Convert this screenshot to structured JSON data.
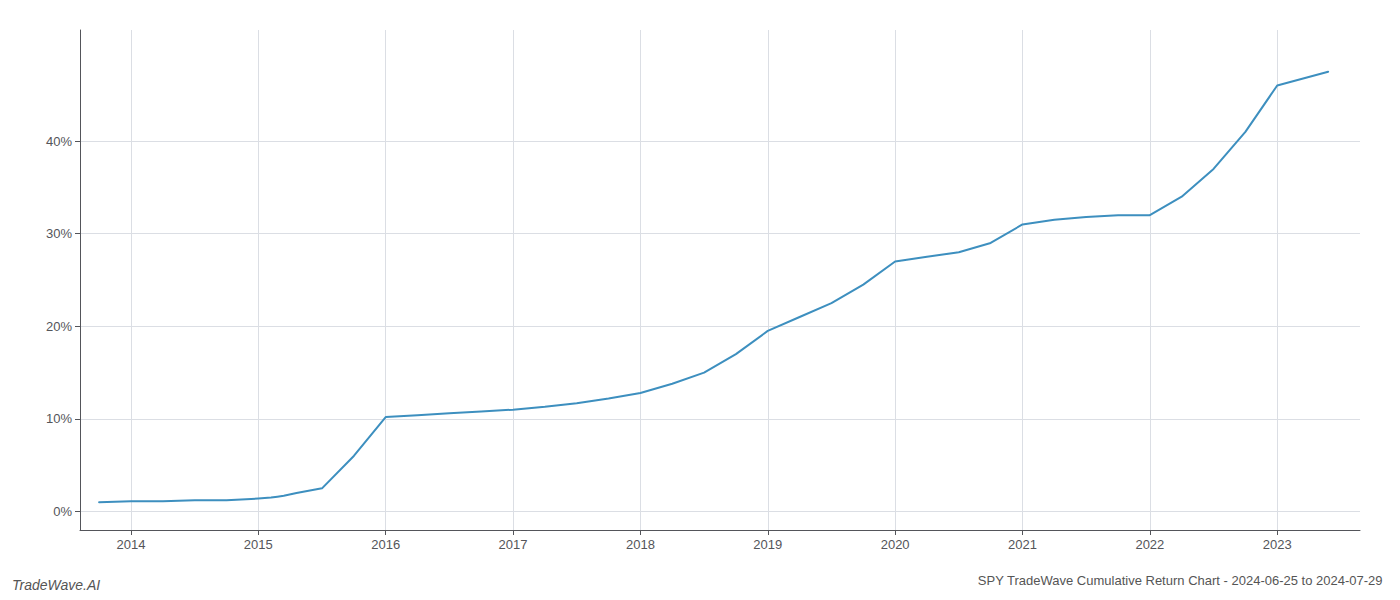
{
  "chart_data": {
    "type": "line",
    "title": "SPY TradeWave Cumulative Return Chart - 2024-06-25 to 2024-07-29",
    "annotations": [
      "TradeWave.AI"
    ],
    "color": "#3d8fbf",
    "x": [
      2013.75,
      2014.0,
      2014.25,
      2014.5,
      2014.75,
      2015.0,
      2015.1,
      2015.15,
      2015.2,
      2015.3,
      2015.5,
      2015.75,
      2016.0,
      2016.25,
      2016.5,
      2016.75,
      2017.0,
      2017.25,
      2017.5,
      2017.75,
      2018.0,
      2018.25,
      2018.5,
      2018.75,
      2019.0,
      2019.25,
      2019.5,
      2019.75,
      2020.0,
      2020.25,
      2020.5,
      2020.75,
      2021.0,
      2021.25,
      2021.5,
      2021.75,
      2022.0,
      2022.25,
      2022.5,
      2022.75,
      2023.0,
      2023.4
    ],
    "values": [
      1.0,
      1.1,
      1.1,
      1.2,
      1.2,
      1.4,
      1.5,
      1.6,
      1.7,
      2.0,
      2.5,
      6.0,
      10.2,
      10.4,
      10.6,
      10.8,
      11.0,
      11.3,
      11.7,
      12.2,
      12.8,
      13.8,
      15.0,
      17.0,
      19.5,
      21.0,
      22.5,
      24.5,
      27.0,
      27.5,
      28.0,
      29.0,
      31.0,
      31.5,
      31.8,
      32.0,
      32.0,
      34.0,
      37.0,
      41.0,
      46.0,
      47.5
    ],
    "xlim": [
      2013.6,
      2023.65
    ],
    "ylim": [
      -2,
      52
    ],
    "xticks": [
      2014,
      2015,
      2016,
      2017,
      2018,
      2019,
      2020,
      2021,
      2022,
      2023
    ],
    "yticks": [
      {
        "value": 0,
        "label": "0%"
      },
      {
        "value": 10,
        "label": "10%"
      },
      {
        "value": 20,
        "label": "20%"
      },
      {
        "value": 30,
        "label": "30%"
      },
      {
        "value": 40,
        "label": "40%"
      }
    ],
    "grid": true
  }
}
